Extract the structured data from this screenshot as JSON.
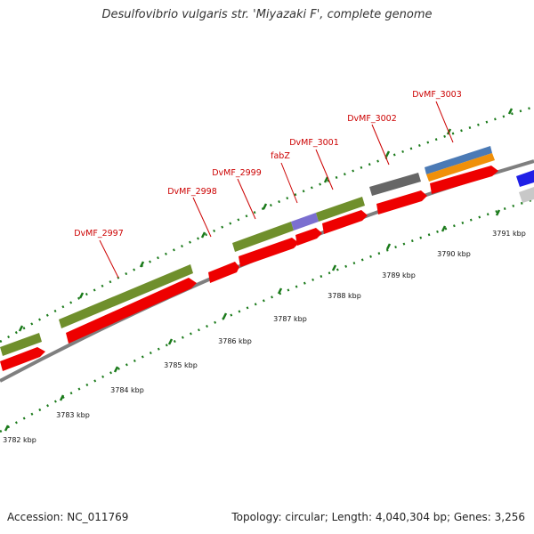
{
  "title": "Desulfovibrio vulgaris str. 'Miyazaki F', complete genome",
  "footer": {
    "accession": "Accession: NC_011769",
    "topology": "Topology: circular; Length: 4,040,304 bp; Genes: 3,256"
  },
  "colors": {
    "label": "#cc0000",
    "tick": "#1a7a1a",
    "backbone": "#7f7f7f",
    "cds": "#ee0000",
    "gene": "#6f8f2c",
    "fabz_segment": "#7b6fd0",
    "grey_feature": "#666666",
    "blue_feature": "#4b7ab5",
    "orange_feature": "#f0900a"
  },
  "scale_labels": [
    "3782 kbp",
    "3783 kbp",
    "3784 kbp",
    "3785 kbp",
    "3786 kbp",
    "3787 kbp",
    "3788 kbp",
    "3789 kbp",
    "3790 kbp",
    "3791 kbp"
  ],
  "gene_labels": [
    "DvMF_2997",
    "DvMF_2998",
    "DvMF_2999",
    "fabZ",
    "DvMF_3001",
    "DvMF_3002",
    "DvMF_3003"
  ]
}
